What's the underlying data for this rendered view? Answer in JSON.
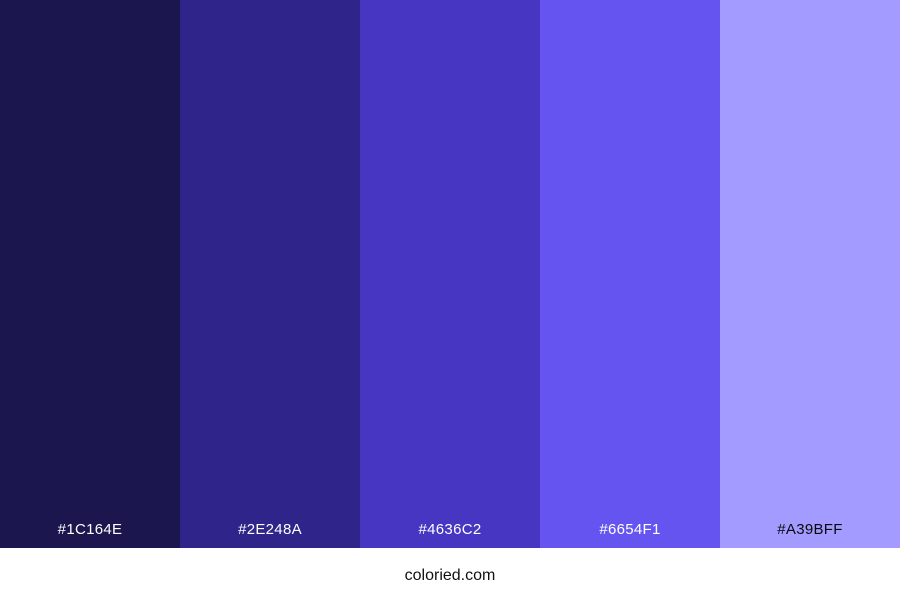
{
  "palette": {
    "swatches": [
      {
        "hex": "#1C164E",
        "label": "#1C164E",
        "text_color": "#FFFFFF"
      },
      {
        "hex": "#2E248A",
        "label": "#2E248A",
        "text_color": "#FFFFFF"
      },
      {
        "hex": "#4636C2",
        "label": "#4636C2",
        "text_color": "#FFFFFF"
      },
      {
        "hex": "#6654F1",
        "label": "#6654F1",
        "text_color": "#FFFFFF"
      },
      {
        "hex": "#A39BFF",
        "label": "#A39BFF",
        "text_color": "#0A0A0A"
      }
    ]
  },
  "footer": {
    "site_label": "coloried.com",
    "background": "#FFFFFF",
    "text_color": "#111111"
  }
}
